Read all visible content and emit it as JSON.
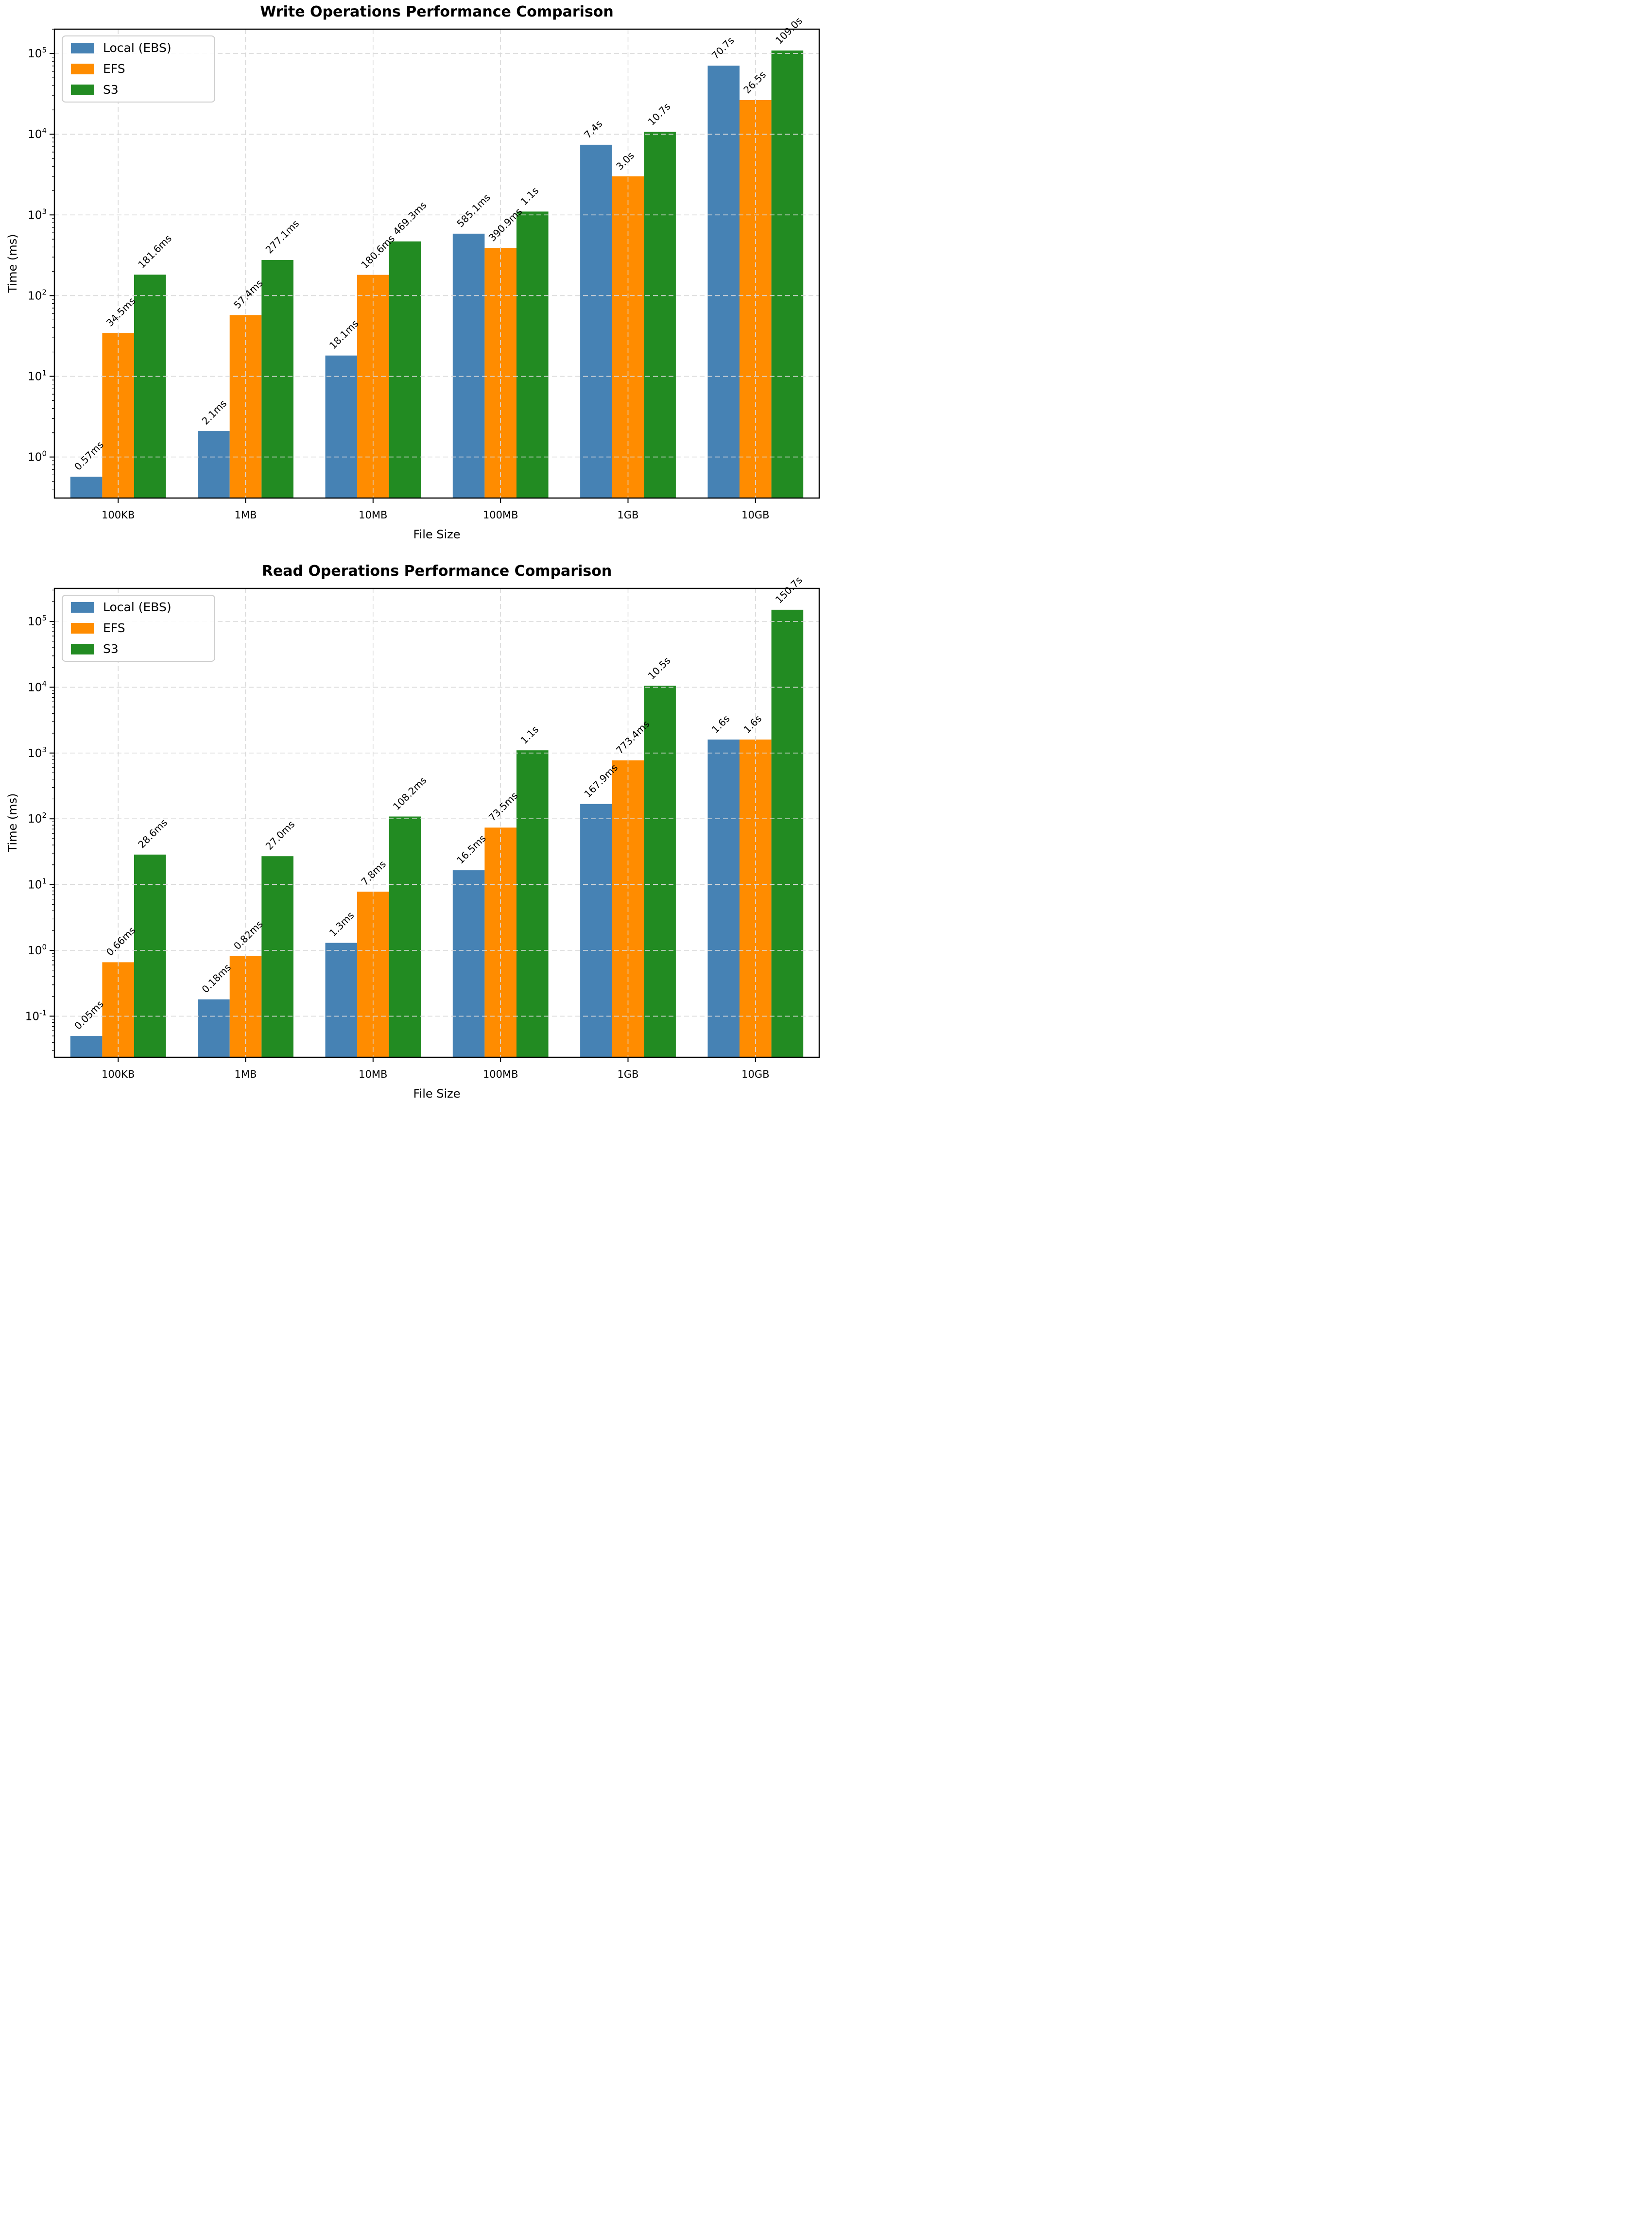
{
  "figure": {
    "background": "#ffffff",
    "spine_color": "#000000",
    "grid_color": "#d9d9d9",
    "grid_style": "dashed"
  },
  "chart_data": [
    {
      "id": "write",
      "type": "bar",
      "title": "Write Operations Performance Comparison",
      "xlabel": "File Size",
      "ylabel": "Time (ms)",
      "y_scale": "log",
      "y_tick_exponents": [
        0,
        1,
        2,
        3,
        4,
        5
      ],
      "categories": [
        "100KB",
        "1MB",
        "10MB",
        "100MB",
        "1GB",
        "10GB"
      ],
      "series": [
        {
          "name": "Local (EBS)",
          "color": "#4682B4",
          "values_ms": [
            0.57,
            2.1,
            18.1,
            585.1,
            7400,
            70700
          ],
          "labels": [
            "0.57ms",
            "2.1ms",
            "18.1ms",
            "585.1ms",
            "7.4s",
            "70.7s"
          ]
        },
        {
          "name": "EFS",
          "color": "#FF8C00",
          "values_ms": [
            34.5,
            57.4,
            180.6,
            390.9,
            3000,
            26500
          ],
          "labels": [
            "34.5ms",
            "57.4ms",
            "180.6ms",
            "390.9ms",
            "3.0s",
            "26.5s"
          ]
        },
        {
          "name": "S3",
          "color": "#228B22",
          "values_ms": [
            181.6,
            277.1,
            469.3,
            1100,
            10700,
            109000
          ],
          "labels": [
            "181.6ms",
            "277.1ms",
            "469.3ms",
            "1.1s",
            "10.7s",
            "109.0s"
          ]
        }
      ],
      "legend": {
        "position": "upper-left",
        "items": [
          "Local (EBS)",
          "EFS",
          "S3"
        ]
      }
    },
    {
      "id": "read",
      "type": "bar",
      "title": "Read Operations Performance Comparison",
      "xlabel": "File Size",
      "ylabel": "Time (ms)",
      "y_scale": "log",
      "y_tick_exponents": [
        -1,
        0,
        1,
        2,
        3,
        4,
        5
      ],
      "categories": [
        "100KB",
        "1MB",
        "10MB",
        "100MB",
        "1GB",
        "10GB"
      ],
      "series": [
        {
          "name": "Local (EBS)",
          "color": "#4682B4",
          "values_ms": [
            0.05,
            0.18,
            1.3,
            16.5,
            167.9,
            1600
          ],
          "labels": [
            "0.05ms",
            "0.18ms",
            "1.3ms",
            "16.5ms",
            "167.9ms",
            "1.6s"
          ]
        },
        {
          "name": "EFS",
          "color": "#FF8C00",
          "values_ms": [
            0.66,
            0.82,
            7.8,
            73.5,
            773.4,
            1600
          ],
          "labels": [
            "0.66ms",
            "0.82ms",
            "7.8ms",
            "73.5ms",
            "773.4ms",
            "1.6s"
          ]
        },
        {
          "name": "S3",
          "color": "#228B22",
          "values_ms": [
            28.6,
            27.0,
            108.2,
            1100,
            10500,
            150700
          ],
          "labels": [
            "28.6ms",
            "27.0ms",
            "108.2ms",
            "1.1s",
            "10.5s",
            "150.7s"
          ]
        }
      ],
      "legend": {
        "position": "upper-left",
        "items": [
          "Local (EBS)",
          "EFS",
          "S3"
        ]
      }
    }
  ]
}
